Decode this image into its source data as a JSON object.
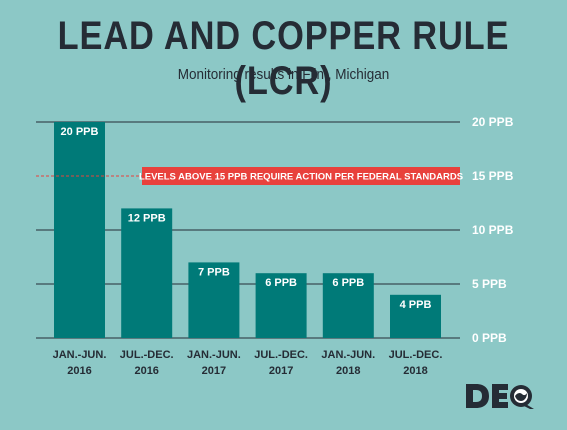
{
  "title": "LEAD AND COPPER RULE (LCR)",
  "subtitle": "Monitoring results in Flint, Michigan",
  "colors": {
    "background": "#8cc8c6",
    "bar": "#007a78",
    "title": "#252c35",
    "annotation": "#e8413c",
    "gridline": "#252c35"
  },
  "chart_data": {
    "type": "bar",
    "categories": [
      [
        "JAN.-JUN.",
        "2016"
      ],
      [
        "JUL.-DEC.",
        "2016"
      ],
      [
        "JAN.-JUN.",
        "2017"
      ],
      [
        "JUL.-DEC.",
        "2017"
      ],
      [
        "JAN.-JUN.",
        "2018"
      ],
      [
        "JUL.-DEC.",
        "2018"
      ]
    ],
    "values": [
      20,
      12,
      7,
      6,
      6,
      4
    ],
    "data_labels": [
      "20 PPB",
      "12 PPB",
      "7 PPB",
      "6 PPB",
      "6 PPB",
      "4 PPB"
    ],
    "y_ticks": [
      {
        "value": 20,
        "label": "20 PPB"
      },
      {
        "value": 15,
        "label": "15 PPB"
      },
      {
        "value": 10,
        "label": "10 PPB"
      },
      {
        "value": 5,
        "label": "5 PPB"
      },
      {
        "value": 0,
        "label": "0 PPB"
      }
    ],
    "ylim": [
      0,
      20
    ],
    "grid": true,
    "threshold": {
      "value": 15,
      "label": "LEVELS ABOVE 15 PPB REQUIRE ACTION PER FEDERAL STANDARDS"
    }
  },
  "logo": {
    "text": "DEQ",
    "icon": "deq-logo-icon"
  }
}
